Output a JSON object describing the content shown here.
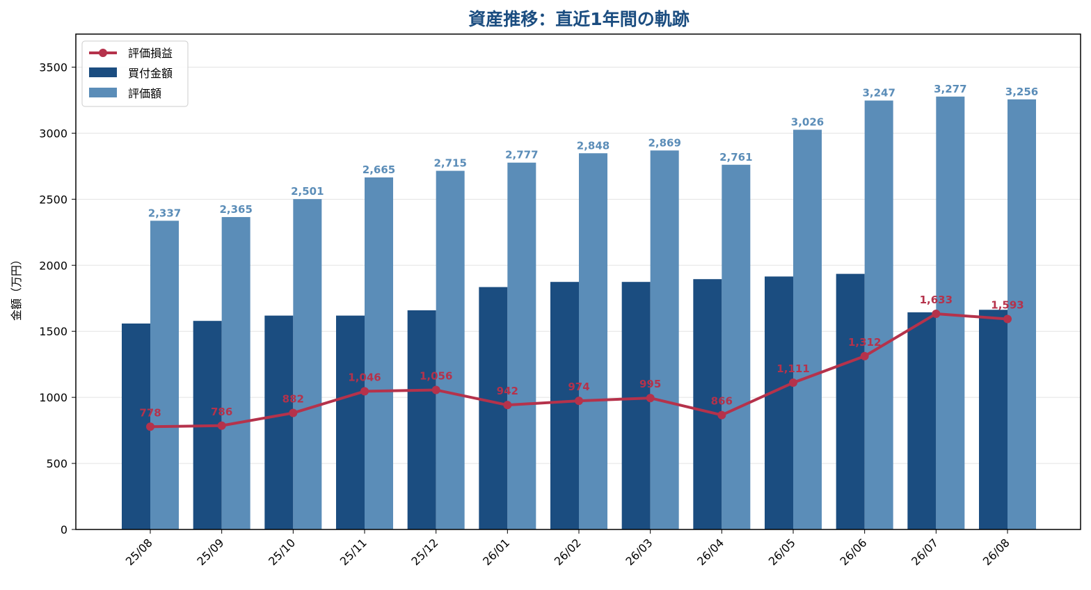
{
  "chart_data": {
    "type": "bar",
    "title": "資産推移：直近1年間の軌跡",
    "ylabel": "金額（万円）",
    "xlabel": "",
    "ylim": [
      0,
      3750
    ],
    "yticks": [
      0,
      500,
      1000,
      1500,
      2000,
      2500,
      3000,
      3500
    ],
    "grid": "horizontal",
    "legend_position": "top-left",
    "categories": [
      "25/08",
      "25/09",
      "25/10",
      "25/11",
      "25/12",
      "26/01",
      "26/02",
      "26/03",
      "26/04",
      "26/05",
      "26/06",
      "26/07",
      "26/08"
    ],
    "series": [
      {
        "name": "買付金額",
        "kind": "bar",
        "color": "#1b4d80",
        "values": [
          1559,
          1579,
          1619,
          1619,
          1659,
          1835,
          1874,
          1874,
          1895,
          1915,
          1935,
          1644,
          1663
        ]
      },
      {
        "name": "評価額",
        "kind": "bar",
        "color": "#5b8db8",
        "values": [
          2337,
          2365,
          2501,
          2665,
          2715,
          2777,
          2848,
          2869,
          2761,
          3026,
          3247,
          3277,
          3256
        ],
        "labels": [
          "2,337",
          "2,365",
          "2,501",
          "2,665",
          "2,715",
          "2,777",
          "2,848",
          "2,869",
          "2,761",
          "3,026",
          "3,247",
          "3,277",
          "3,256"
        ]
      },
      {
        "name": "評価損益",
        "kind": "line",
        "color": "#b5324b",
        "values": [
          778,
          786,
          882,
          1046,
          1056,
          942,
          974,
          995,
          866,
          1111,
          1312,
          1633,
          1593
        ],
        "labels": [
          "778",
          "786",
          "882",
          "1,046",
          "1,056",
          "942",
          "974",
          "995",
          "866",
          "1,111",
          "1,312",
          "1,633",
          "1,593"
        ]
      }
    ],
    "title_color": "#1b4d80"
  }
}
